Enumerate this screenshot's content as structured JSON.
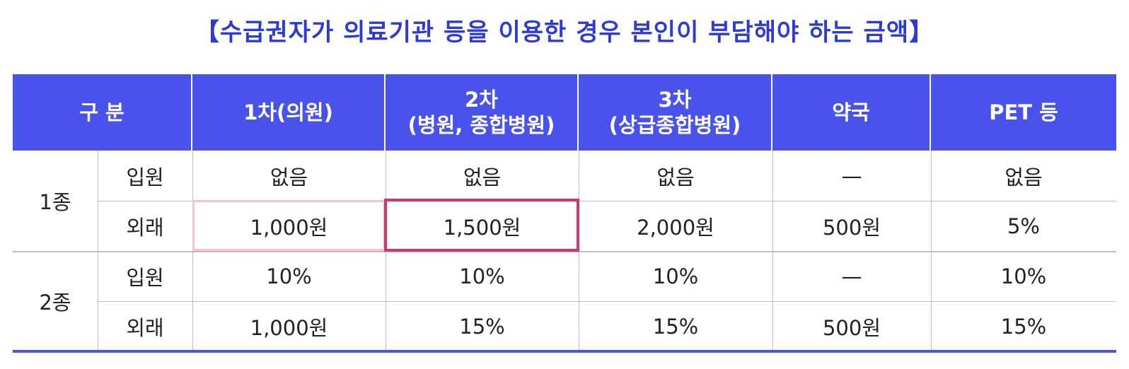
{
  "title": "【수급권자가 의료기관 등을 이용한 경우 본인이 부담해야 하는 금액】",
  "table": {
    "header": [
      [
        "구 분"
      ],
      [
        "1차(의원)"
      ],
      [
        "2차",
        "(병원, 종합병원)"
      ],
      [
        "3차",
        "(상급종합병원)"
      ],
      [
        "약국"
      ],
      [
        "PET 등"
      ]
    ],
    "groups": [
      {
        "label": "1종",
        "rows": [
          {
            "label": "입원",
            "cells": [
              "없음",
              "없음",
              "없음",
              "—",
              "없음"
            ]
          },
          {
            "label": "외래",
            "cells": [
              "1,000원",
              "1,500원",
              "2,000원",
              "500원",
              "5%"
            ]
          }
        ]
      },
      {
        "label": "2종",
        "rows": [
          {
            "label": "입원",
            "cells": [
              "10%",
              "10%",
              "10%",
              "—",
              "10%"
            ]
          },
          {
            "label": "외래",
            "cells": [
              "1,000원",
              "15%",
              "15%",
              "500원",
              "15%"
            ]
          }
        ]
      }
    ]
  }
}
